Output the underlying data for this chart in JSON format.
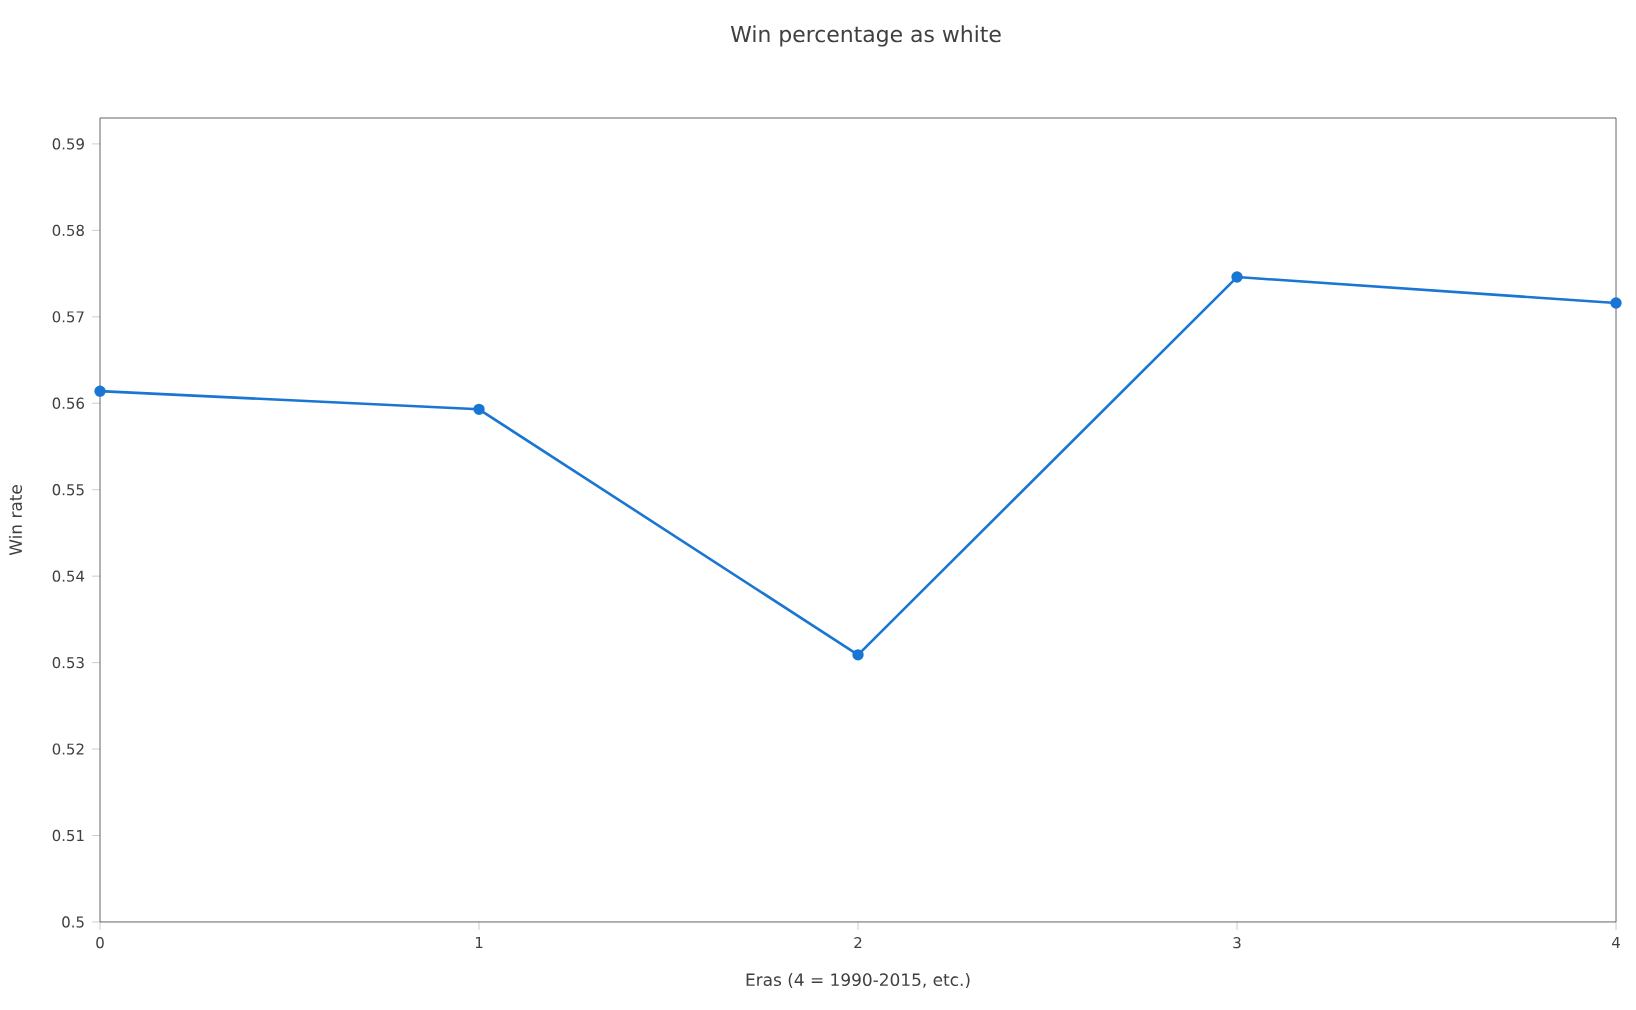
{
  "chart_data": {
    "type": "line",
    "title": "Win percentage as white",
    "xlabel": "Eras (4 = 1990-2015, etc.)",
    "ylabel": "Win rate",
    "x": [
      0,
      1,
      2,
      3,
      4
    ],
    "series": [
      {
        "color": "#1976d2",
        "values": [
          0.5614,
          0.5593,
          0.5309,
          0.5746,
          0.5716
        ]
      }
    ],
    "xlim": [
      0,
      4
    ],
    "ylim": [
      0.5,
      0.593
    ],
    "xticks": [
      0,
      1,
      2,
      3,
      4
    ],
    "yticks": [
      0.5,
      0.51,
      0.52,
      0.53,
      0.54,
      0.55,
      0.56,
      0.57,
      0.58,
      0.59
    ],
    "grid": false,
    "marker": "circle",
    "line_style": "solid"
  }
}
